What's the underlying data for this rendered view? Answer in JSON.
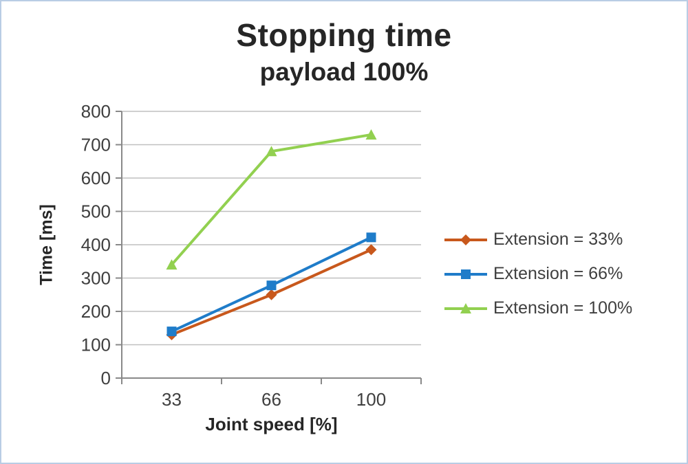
{
  "chart_data": {
    "type": "line",
    "title": "Stopping time",
    "subtitle": "payload 100%",
    "xlabel": "Joint speed [%]",
    "ylabel": "Time [ms]",
    "categories": [
      "33",
      "66",
      "100"
    ],
    "series": [
      {
        "name": "Extension = 33%",
        "values": [
          130,
          250,
          385
        ],
        "color": "#C8581C",
        "marker": "diamond"
      },
      {
        "name": "Extension = 66%",
        "values": [
          140,
          278,
          422
        ],
        "color": "#1F7CC9",
        "marker": "square"
      },
      {
        "name": "Extension = 100%",
        "values": [
          340,
          680,
          730
        ],
        "color": "#92D050",
        "marker": "triangle"
      }
    ],
    "ylim": [
      0,
      800
    ],
    "ytick_step": 100,
    "grid": true,
    "legend_position": "right",
    "colors": {
      "axis": "#898989",
      "grid": "#BFBFBF",
      "text": "#3F3F3F",
      "title": "#262626"
    }
  }
}
